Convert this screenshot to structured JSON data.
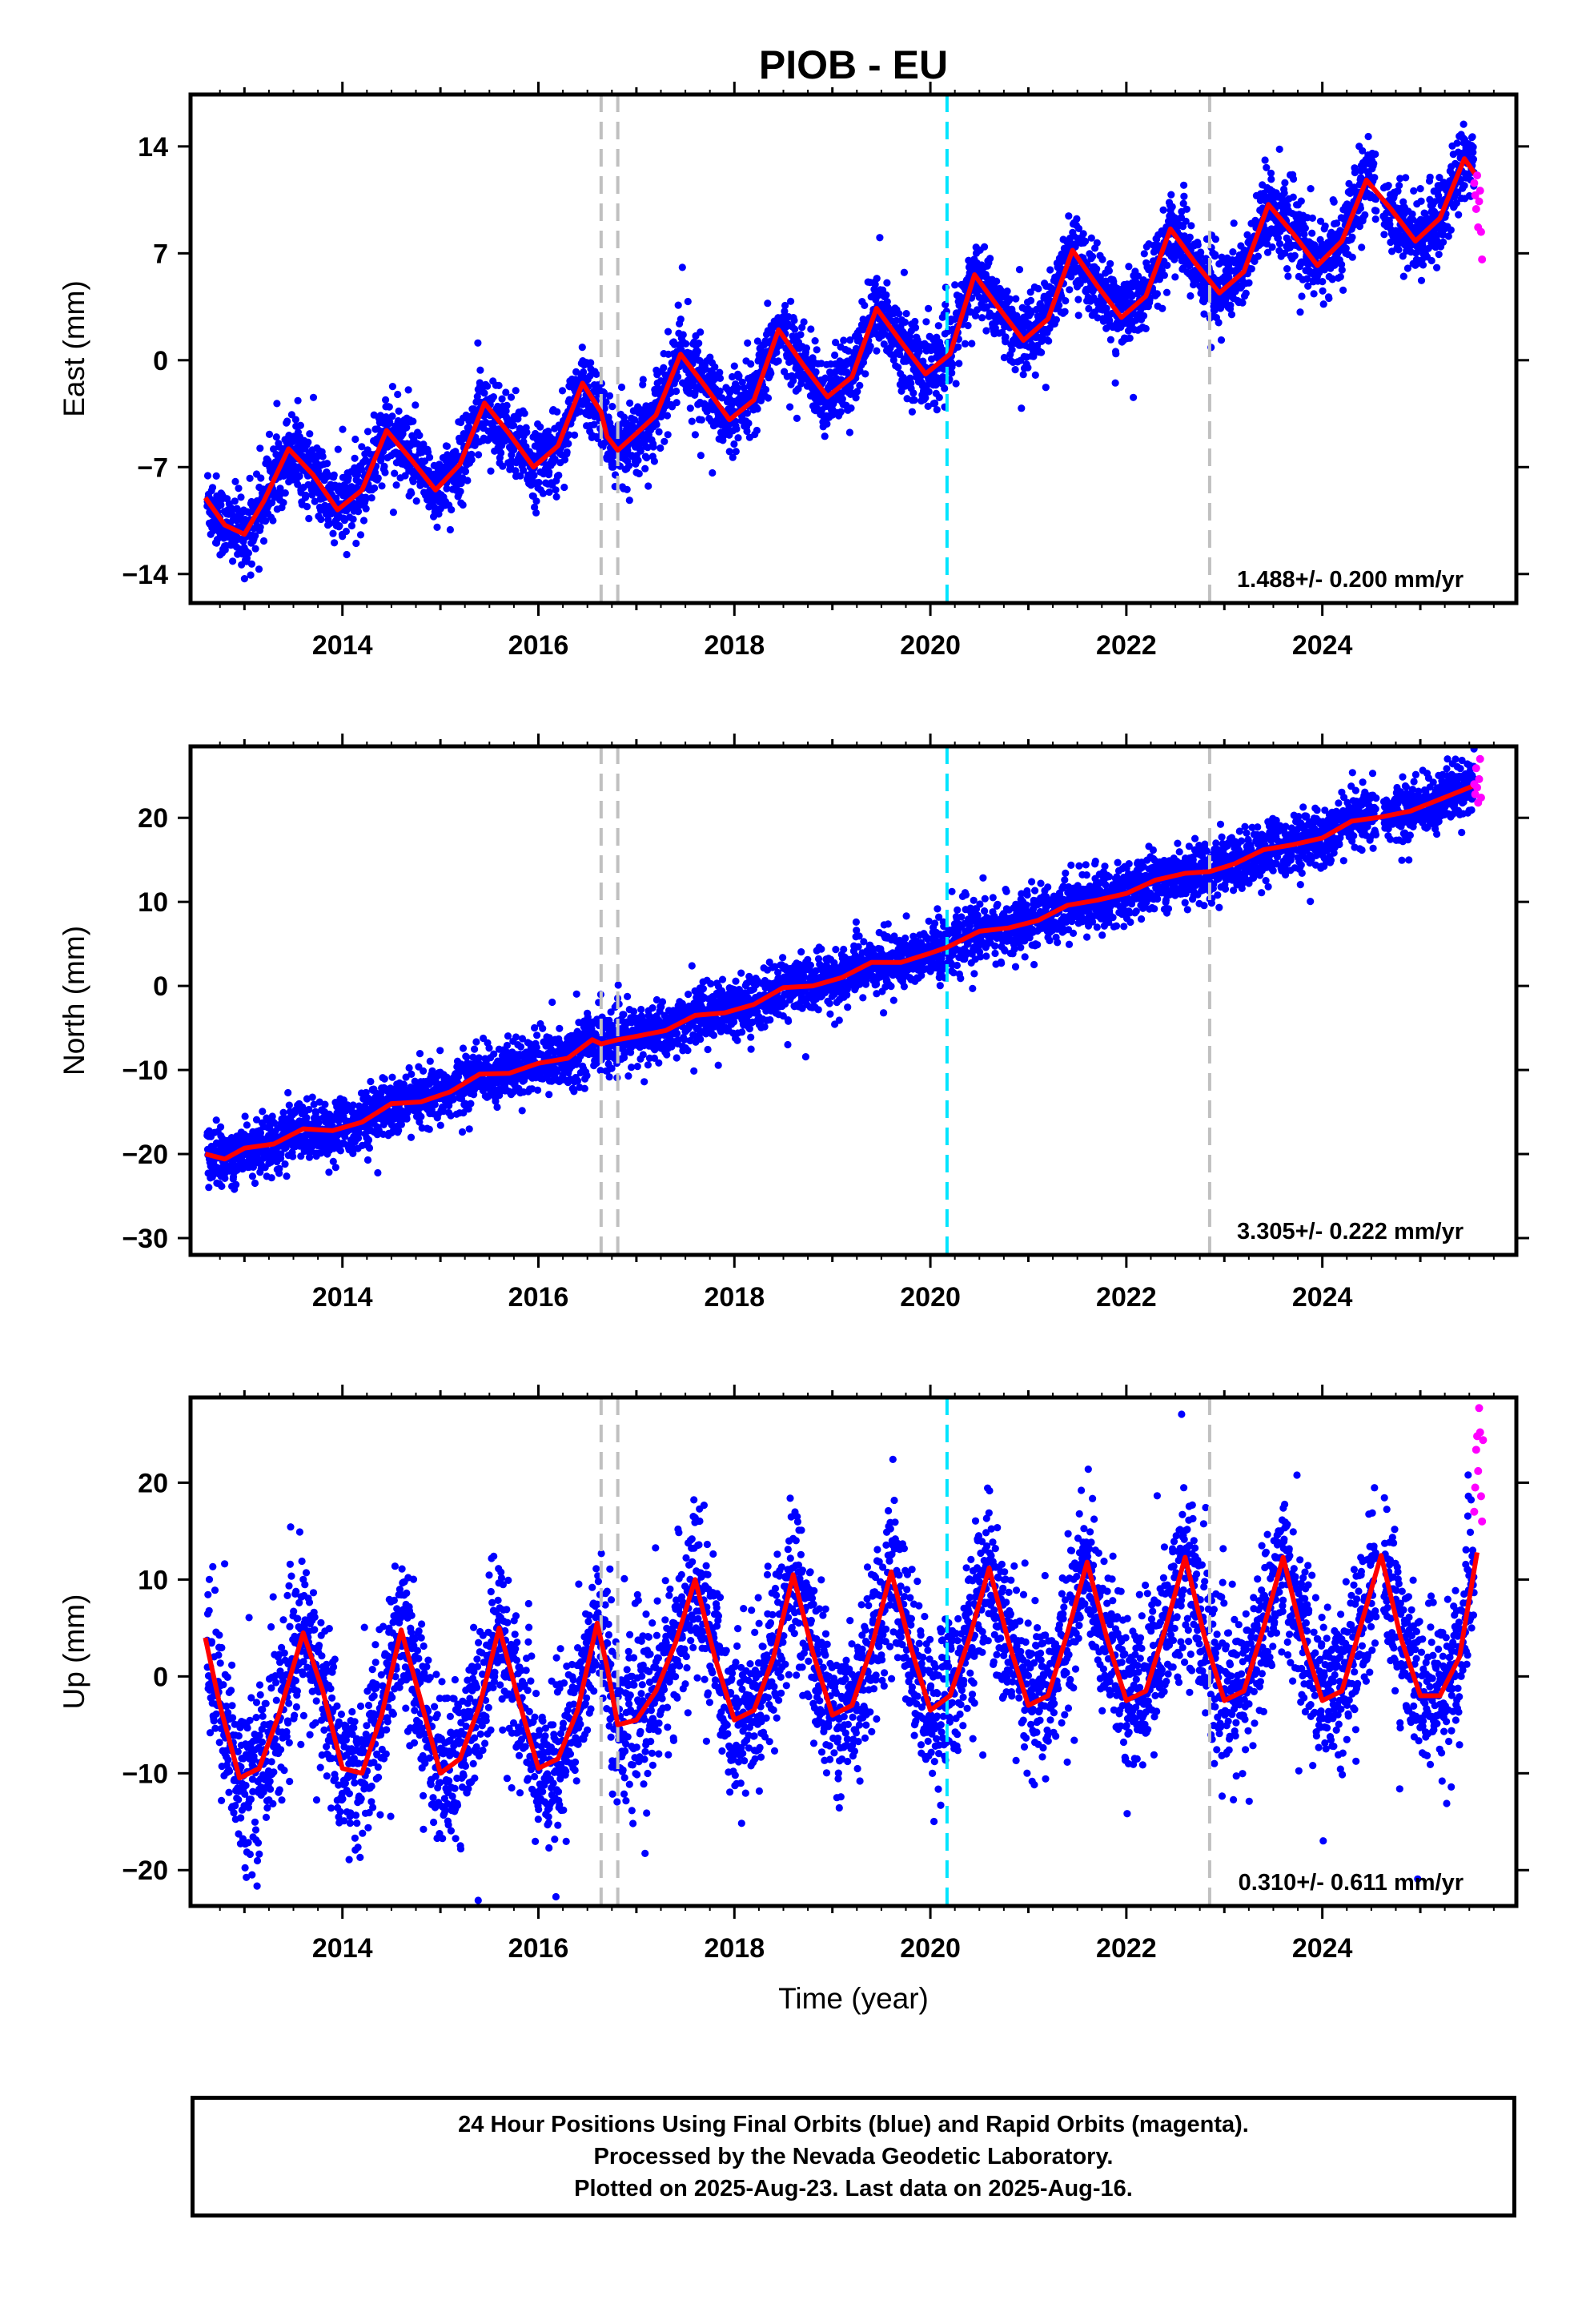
{
  "title": "PIOB - EU",
  "colors": {
    "final_orbits": "#0000ff",
    "rapid_orbits": "#ff00ff",
    "model_fit": "#ff0000",
    "gray_marker": "#c0c0c0",
    "cyan_marker": "#00e5ff",
    "frame": "#000000"
  },
  "chart_data": [
    {
      "type": "scatter",
      "component": "east",
      "title": "",
      "xlabel": "",
      "ylabel": "East (mm)",
      "xlim": [
        2012.45,
        2025.98
      ],
      "ylim": [
        -15.9,
        17.4
      ],
      "xticks": [
        2014,
        2016,
        2018,
        2020,
        2022,
        2024
      ],
      "yticks": [
        -14,
        -7,
        0,
        7,
        14
      ],
      "rate_label": "1.488+/- 0.200 mm/yr",
      "vertical_markers": [
        {
          "x": 2016.64,
          "color": "gray"
        },
        {
          "x": 2016.81,
          "color": "gray"
        },
        {
          "x": 2020.17,
          "color": "cyan"
        },
        {
          "x": 2022.85,
          "color": "gray"
        }
      ],
      "model": {
        "name": "model fit",
        "x": [
          2012.6,
          2012.8,
          2013.0,
          2013.2,
          2013.45,
          2013.7,
          2013.95,
          2014.2,
          2014.45,
          2014.7,
          2014.95,
          2015.2,
          2015.45,
          2015.7,
          2015.95,
          2016.2,
          2016.45,
          2016.64,
          2016.7,
          2016.81,
          2017.0,
          2017.2,
          2017.45,
          2017.7,
          2017.95,
          2018.2,
          2018.45,
          2018.7,
          2018.95,
          2019.2,
          2019.45,
          2019.7,
          2019.95,
          2020.2,
          2020.45,
          2020.7,
          2020.95,
          2021.2,
          2021.45,
          2021.7,
          2021.95,
          2022.2,
          2022.45,
          2022.7,
          2022.95,
          2023.2,
          2023.45,
          2023.7,
          2023.95,
          2024.2,
          2024.45,
          2024.7,
          2024.95,
          2025.2,
          2025.45,
          2025.58
        ],
        "y": [
          -9.0,
          -10.8,
          -11.4,
          -9.2,
          -5.8,
          -7.5,
          -9.8,
          -8.5,
          -4.6,
          -6.5,
          -8.5,
          -6.8,
          -2.8,
          -4.8,
          -7.0,
          -5.6,
          -1.5,
          -3.4,
          -5.0,
          -5.9,
          -4.8,
          -3.6,
          0.4,
          -1.7,
          -3.9,
          -2.6,
          2.0,
          -0.3,
          -2.4,
          -1.1,
          3.4,
          1.2,
          -0.9,
          0.4,
          5.6,
          3.4,
          1.3,
          2.7,
          7.2,
          4.9,
          2.8,
          4.2,
          8.6,
          6.4,
          4.4,
          5.8,
          10.2,
          8.3,
          6.2,
          7.8,
          11.8,
          9.9,
          7.8,
          9.3,
          13.2,
          12.0
        ]
      },
      "rapid": {
        "name": "rapid orbits",
        "x": [
          2025.55,
          2025.56,
          2025.57,
          2025.58,
          2025.59,
          2025.6,
          2025.61,
          2025.62,
          2025.63
        ],
        "y": [
          11.6,
          10.8,
          9.9,
          12.1,
          8.7,
          10.4,
          11.1,
          8.4,
          6.6
        ]
      }
    },
    {
      "type": "scatter",
      "component": "north",
      "title": "",
      "xlabel": "",
      "ylabel": "North (mm)",
      "xlim": [
        2012.45,
        2025.98
      ],
      "ylim": [
        -32.0,
        28.5
      ],
      "xticks": [
        2014,
        2016,
        2018,
        2020,
        2022,
        2024
      ],
      "yticks": [
        -30,
        -20,
        -10,
        0,
        10,
        20
      ],
      "rate_label": "3.305+/- 0.222 mm/yr",
      "vertical_markers": [
        {
          "x": 2016.64,
          "color": "gray"
        },
        {
          "x": 2016.81,
          "color": "gray"
        },
        {
          "x": 2020.17,
          "color": "cyan"
        },
        {
          "x": 2022.85,
          "color": "gray"
        }
      ],
      "model": {
        "name": "model fit",
        "x": [
          2012.6,
          2012.8,
          2013.0,
          2013.3,
          2013.6,
          2013.9,
          2014.2,
          2014.5,
          2014.8,
          2015.1,
          2015.4,
          2015.7,
          2016.0,
          2016.3,
          2016.55,
          2016.64,
          2016.81,
          2017.0,
          2017.3,
          2017.6,
          2017.9,
          2018.2,
          2018.5,
          2018.8,
          2019.1,
          2019.4,
          2019.7,
          2020.0,
          2020.17,
          2020.5,
          2020.8,
          2021.1,
          2021.4,
          2021.7,
          2022.0,
          2022.3,
          2022.6,
          2022.85,
          2023.1,
          2023.4,
          2023.7,
          2024.0,
          2024.3,
          2024.6,
          2024.9,
          2025.2,
          2025.5,
          2025.58
        ],
        "y": [
          -20.0,
          -20.6,
          -19.3,
          -18.8,
          -17.0,
          -17.2,
          -16.2,
          -14.0,
          -13.8,
          -12.6,
          -10.5,
          -10.4,
          -9.2,
          -8.6,
          -6.4,
          -6.9,
          -6.4,
          -6.0,
          -5.3,
          -3.5,
          -3.2,
          -2.2,
          -0.2,
          0.0,
          1.0,
          2.8,
          2.8,
          3.9,
          4.6,
          6.5,
          6.9,
          7.8,
          9.6,
          10.2,
          11.0,
          12.6,
          13.4,
          13.6,
          14.5,
          16.2,
          16.8,
          17.6,
          19.6,
          20.1,
          20.8,
          22.2,
          23.6,
          24.0
        ]
      },
      "rapid": {
        "name": "rapid orbits",
        "x": [
          2025.55,
          2025.56,
          2025.57,
          2025.58,
          2025.59,
          2025.6,
          2025.61,
          2025.62
        ],
        "y": [
          24.0,
          22.8,
          25.9,
          23.6,
          21.8,
          24.6,
          27.0,
          22.4
        ]
      }
    },
    {
      "type": "scatter",
      "component": "up",
      "title": "",
      "xlabel": "Time (year)",
      "ylabel": "Up (mm)",
      "xlim": [
        2012.45,
        2025.98
      ],
      "ylim": [
        -23.7,
        28.8
      ],
      "xticks": [
        2014,
        2016,
        2018,
        2020,
        2022,
        2024
      ],
      "yticks": [
        -20,
        -10,
        0,
        10,
        20
      ],
      "rate_label": "0.310+/- 0.611 mm/yr",
      "vertical_markers": [
        {
          "x": 2016.64,
          "color": "gray"
        },
        {
          "x": 2016.81,
          "color": "gray"
        },
        {
          "x": 2020.17,
          "color": "cyan"
        },
        {
          "x": 2022.85,
          "color": "gray"
        }
      ],
      "model": {
        "name": "model fit",
        "x": [
          2012.6,
          2012.75,
          2012.95,
          2013.15,
          2013.35,
          2013.6,
          2013.8,
          2014.0,
          2014.2,
          2014.4,
          2014.6,
          2014.8,
          2015.0,
          2015.2,
          2015.4,
          2015.6,
          2015.8,
          2016.0,
          2016.2,
          2016.4,
          2016.6,
          2016.7,
          2016.81,
          2017.0,
          2017.2,
          2017.4,
          2017.6,
          2017.8,
          2018.0,
          2018.2,
          2018.4,
          2018.6,
          2018.8,
          2019.0,
          2019.2,
          2019.4,
          2019.6,
          2019.8,
          2020.0,
          2020.2,
          2020.4,
          2020.6,
          2020.8,
          2021.0,
          2021.2,
          2021.4,
          2021.6,
          2021.8,
          2022.0,
          2022.2,
          2022.4,
          2022.6,
          2022.8,
          2023.0,
          2023.2,
          2023.4,
          2023.6,
          2023.8,
          2024.0,
          2024.2,
          2024.4,
          2024.6,
          2024.8,
          2025.0,
          2025.2,
          2025.4,
          2025.58
        ],
        "y": [
          4.0,
          -3.0,
          -10.5,
          -9.5,
          -4.0,
          4.5,
          -1.5,
          -9.5,
          -10.0,
          -4.0,
          4.8,
          -2.5,
          -10.0,
          -8.5,
          -3.0,
          5.0,
          -2.5,
          -9.5,
          -8.5,
          -3.5,
          5.5,
          1.0,
          -5.0,
          -4.5,
          -1.5,
          3.5,
          10.0,
          2.0,
          -4.5,
          -3.5,
          2.0,
          10.5,
          2.5,
          -4.0,
          -3.0,
          3.0,
          10.8,
          3.0,
          -3.5,
          -2.0,
          4.0,
          11.2,
          3.5,
          -3.0,
          -2.0,
          4.5,
          11.8,
          4.0,
          -2.5,
          -1.5,
          5.0,
          12.3,
          4.0,
          -2.5,
          -1.5,
          5.0,
          12.3,
          4.0,
          -2.5,
          -1.5,
          5.5,
          12.5,
          4.0,
          -2.0,
          -2.0,
          2.0,
          12.8
        ]
      },
      "rapid": {
        "name": "rapid orbits",
        "x": [
          2025.55,
          2025.56,
          2025.57,
          2025.58,
          2025.59,
          2025.6,
          2025.61,
          2025.62,
          2025.63,
          2025.64
        ],
        "y": [
          17.0,
          19.5,
          23.4,
          24.8,
          21.2,
          27.7,
          25.2,
          18.6,
          16.0,
          24.4
        ]
      }
    }
  ],
  "footer": {
    "line1": "24 Hour Positions Using Final Orbits (blue) and Rapid Orbits (magenta).",
    "line2": "Processed by the Nevada Geodetic Laboratory.",
    "line3": "Plotted on 2025-Aug-23. Last data on 2025-Aug-16."
  }
}
